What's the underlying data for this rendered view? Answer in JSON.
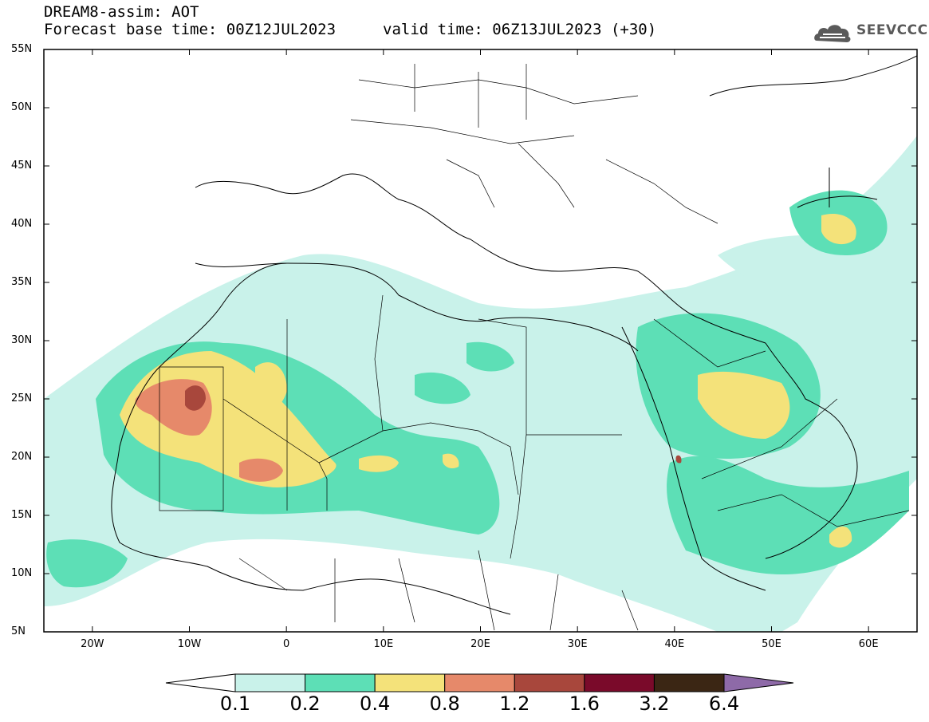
{
  "header": {
    "title": "DREAM8-assim: AOT",
    "base_time": "Forecast base time: 00Z12JUL2023",
    "valid_time": "valid time: 06Z13JUL2023 (+30)",
    "logo_text": "SEEVCCC"
  },
  "map": {
    "lon_range": [
      -25,
      65
    ],
    "lat_range": [
      5,
      55
    ],
    "lat_labels": [
      "55N",
      "50N",
      "45N",
      "40N",
      "35N",
      "30N",
      "25N",
      "20N",
      "15N",
      "10N",
      "5N"
    ],
    "lon_labels": [
      "20W",
      "10W",
      "0",
      "10E",
      "20E",
      "30E",
      "40E",
      "50E",
      "60E"
    ]
  },
  "legend": {
    "labels": [
      "0.1",
      "0.2",
      "0.4",
      "0.8",
      "1.2",
      "1.6",
      "3.2",
      "6.4"
    ],
    "colors": [
      "#c9f2ea",
      "#5ddfb6",
      "#f4e27a",
      "#e6896a",
      "#a8473c",
      "#7a0a2a",
      "#3b2614",
      "#8e6aa8"
    ],
    "under_color": "#ffffff"
  }
}
